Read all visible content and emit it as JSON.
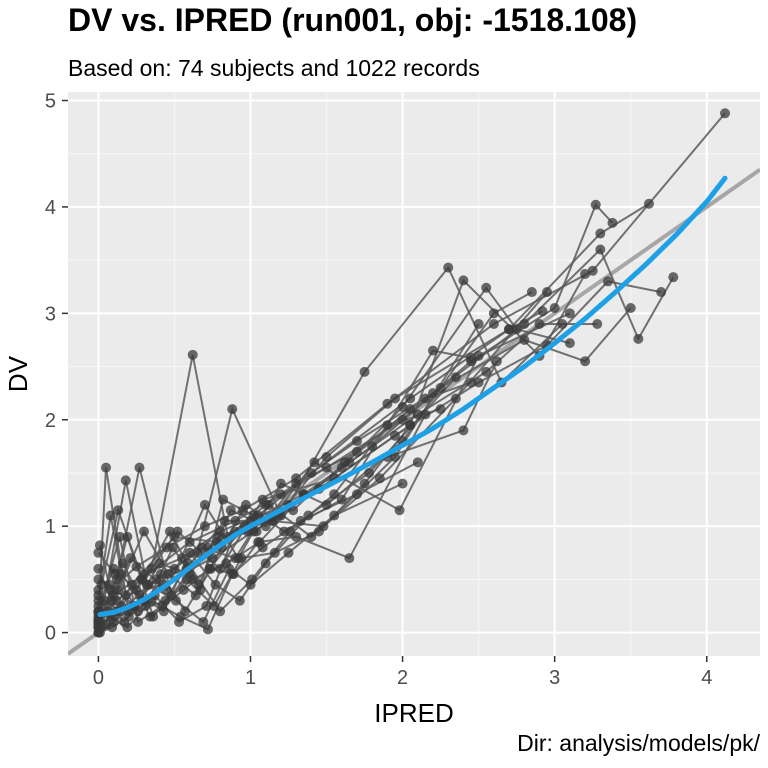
{
  "chart_data": {
    "type": "scatter",
    "title": "DV vs. IPRED (run001, obj: -1518.108)",
    "subtitle": "Based on: 74 subjects and 1022 records",
    "caption": "Dir: analysis/models/pk/",
    "xlabel": "IPRED",
    "ylabel": "DV",
    "xlim": [
      -0.2,
      4.35
    ],
    "ylim": [
      -0.22,
      5.08
    ],
    "xticks": [
      "0",
      "1",
      "2",
      "3",
      "4"
    ],
    "yticks": [
      "0",
      "1",
      "2",
      "3",
      "4",
      "5"
    ],
    "grid": true,
    "panel_background": "#ebebeb",
    "point_color": "#3a3a3a",
    "line_color": "#5a5a5a",
    "identity_line_color": "#a6a6a6",
    "smooth_color": "#1ea0e6",
    "identity_line": [
      [
        -0.2,
        -0.2
      ],
      [
        4.35,
        4.35
      ]
    ],
    "smooth": {
      "x": [
        0.01,
        0.1,
        0.2,
        0.3,
        0.4,
        0.5,
        0.6,
        0.7,
        0.8,
        0.9,
        1.0,
        1.2,
        1.4,
        1.6,
        1.8,
        2.0,
        2.2,
        2.4,
        2.6,
        2.8,
        3.0,
        3.2,
        3.4,
        3.6,
        3.8,
        4.0,
        4.12
      ],
      "y": [
        0.17,
        0.19,
        0.24,
        0.31,
        0.4,
        0.5,
        0.61,
        0.72,
        0.82,
        0.92,
        1.0,
        1.15,
        1.3,
        1.45,
        1.6,
        1.76,
        1.92,
        2.1,
        2.3,
        2.5,
        2.72,
        2.95,
        3.2,
        3.46,
        3.74,
        4.05,
        4.27
      ]
    },
    "subjects": [
      {
        "x": [
          0.0,
          0.08,
          0.25,
          0.45,
          0.7,
          0.95,
          1.3,
          1.9,
          2.6,
          3.25,
          4.12
        ],
        "y": [
          0.05,
          0.4,
          0.62,
          0.8,
          1.0,
          1.15,
          1.45,
          2.15,
          2.9,
          3.4,
          4.88
        ]
      },
      {
        "x": [
          0.0,
          0.1,
          0.3,
          0.55,
          0.8,
          1.05,
          1.4,
          2.05,
          2.7,
          3.3,
          3.62
        ],
        "y": [
          0.1,
          0.35,
          0.55,
          0.7,
          0.95,
          1.1,
          1.5,
          2.2,
          2.85,
          3.75,
          4.03
        ]
      },
      {
        "x": [
          0.0,
          0.12,
          0.28,
          0.6,
          0.9,
          1.2,
          1.7,
          2.2,
          2.8,
          3.3,
          3.55,
          3.78
        ],
        "y": [
          0.08,
          0.3,
          0.5,
          0.85,
          1.05,
          1.3,
          1.8,
          2.25,
          2.9,
          3.6,
          2.76,
          3.34
        ]
      },
      {
        "x": [
          0.0,
          0.15,
          0.35,
          0.62,
          0.85,
          1.1,
          1.5,
          2.0,
          2.45,
          3.0,
          3.27,
          3.38
        ],
        "y": [
          0.12,
          0.25,
          0.6,
          2.61,
          0.9,
          1.2,
          1.55,
          2.0,
          2.55,
          3.05,
          4.02,
          3.85
        ]
      },
      {
        "x": [
          0.0,
          0.1,
          0.22,
          0.5,
          0.78,
          1.0,
          1.35,
          1.8,
          2.25,
          2.8,
          3.2,
          3.5
        ],
        "y": [
          0.2,
          0.15,
          0.45,
          0.9,
          0.85,
          1.05,
          1.3,
          1.75,
          2.3,
          2.75,
          2.55,
          3.05
        ]
      },
      {
        "x": [
          0.0,
          0.05,
          0.18,
          0.42,
          0.75,
          1.02,
          1.45,
          1.95,
          2.5,
          2.95,
          3.35,
          3.7
        ],
        "y": [
          0.15,
          1.55,
          0.35,
          0.45,
          0.7,
          0.95,
          1.35,
          1.85,
          2.35,
          2.7,
          3.3,
          3.2
        ]
      },
      {
        "x": [
          0.0,
          0.08,
          0.2,
          0.38,
          0.65,
          0.88,
          1.2,
          1.65,
          2.1,
          2.55,
          2.9,
          3.28
        ],
        "y": [
          0.3,
          1.1,
          0.2,
          0.5,
          0.75,
          2.1,
          1.1,
          1.6,
          2.05,
          2.45,
          2.9,
          2.9
        ]
      },
      {
        "x": [
          0.02,
          0.12,
          0.27,
          0.48,
          0.72,
          0.98,
          1.25,
          1.75,
          2.3,
          2.65,
          3.05
        ],
        "y": [
          0.05,
          0.5,
          1.55,
          0.35,
          0.8,
          0.95,
          1.2,
          2.45,
          3.43,
          2.35,
          2.9
        ]
      },
      {
        "x": [
          0.0,
          0.1,
          0.25,
          0.52,
          0.8,
          1.08,
          1.55,
          2.05,
          2.4,
          2.9,
          3.2
        ],
        "y": [
          0.25,
          0.6,
          0.4,
          0.95,
          0.6,
          1.25,
          1.45,
          1.95,
          3.31,
          2.6,
          3.37
        ]
      },
      {
        "x": [
          0.0,
          0.18,
          0.32,
          0.58,
          0.83,
          1.15,
          1.6,
          2.0,
          2.55,
          2.75,
          3.1
        ],
        "y": [
          0.0,
          1.43,
          0.45,
          0.6,
          1.05,
          1.05,
          1.55,
          2.12,
          3.24,
          2.85,
          2.72
        ]
      },
      {
        "x": [
          0.0,
          0.09,
          0.21,
          0.45,
          0.7,
          0.92,
          1.2,
          1.5,
          2.0,
          2.6,
          2.85
        ],
        "y": [
          0.6,
          0.3,
          0.7,
          0.4,
          1.2,
          0.7,
          1.4,
          1.2,
          1.8,
          3.0,
          3.2
        ]
      },
      {
        "x": [
          0.0,
          0.14,
          0.3,
          0.5,
          0.68,
          0.9,
          1.12,
          1.4,
          1.85,
          2.35,
          2.95
        ],
        "y": [
          0.35,
          0.2,
          0.3,
          0.6,
          0.8,
          0.7,
          1.2,
          0.9,
          1.45,
          2.2,
          3.2
        ]
      },
      {
        "x": [
          0.0,
          0.11,
          0.26,
          0.44,
          0.62,
          0.84,
          1.06,
          1.35,
          1.9,
          2.4,
          2.62
        ],
        "y": [
          0.75,
          0.55,
          0.2,
          0.3,
          0.5,
          0.65,
          0.85,
          1.3,
          1.65,
          1.9,
          2.55
        ]
      },
      {
        "x": [
          0.02,
          0.13,
          0.29,
          0.47,
          0.66,
          0.87,
          1.1,
          1.42,
          1.98,
          2.5,
          3.1
        ],
        "y": [
          0.45,
          1.15,
          0.5,
          0.95,
          0.45,
          1.15,
          1.0,
          1.6,
          1.15,
          2.6,
          3.0
        ]
      },
      {
        "x": [
          0.0,
          0.16,
          0.34,
          0.56,
          0.73,
          0.96,
          1.18,
          1.5,
          1.95,
          2.7,
          2.92
        ],
        "y": [
          0.1,
          0.65,
          0.15,
          0.4,
          0.6,
          1.0,
          1.1,
          1.65,
          2.2,
          2.85,
          3.02
        ]
      },
      {
        "x": [
          0.01,
          0.07,
          0.24,
          0.4,
          0.6,
          0.79,
          1.04,
          1.3,
          1.7,
          2.15,
          2.45
        ],
        "y": [
          0.82,
          0.45,
          0.25,
          0.65,
          0.55,
          0.9,
          0.95,
          1.4,
          1.7,
          2.2,
          2.35
        ]
      },
      {
        "x": [
          0.0,
          0.13,
          0.3,
          0.46,
          0.64,
          0.81,
          0.97,
          1.22,
          1.6,
          2.2,
          2.45
        ],
        "y": [
          0.5,
          0.4,
          0.95,
          0.55,
          0.35,
          0.8,
          1.2,
          0.95,
          1.25,
          2.65,
          2.58
        ]
      },
      {
        "x": [
          0.0,
          0.06,
          0.19,
          0.36,
          0.58,
          0.76,
          0.94,
          1.16,
          1.45,
          1.75,
          2.05
        ],
        "y": [
          0.4,
          0.2,
          0.9,
          0.15,
          0.5,
          0.25,
          0.7,
          0.75,
          0.95,
          1.4,
          1.95
        ]
      },
      {
        "x": [
          0.0,
          0.1,
          0.23,
          0.41,
          0.57,
          0.74,
          0.89,
          1.05,
          1.3,
          1.65,
          2.15
        ],
        "y": [
          0.0,
          0.1,
          0.25,
          0.55,
          0.2,
          0.6,
          0.55,
          0.85,
          0.9,
          0.7,
          2.05
        ]
      },
      {
        "x": [
          0.0,
          0.04,
          0.17,
          0.33,
          0.51,
          0.69,
          0.86,
          1.0,
          1.25,
          1.55,
          2.0
        ],
        "y": [
          0.2,
          0.3,
          0.1,
          0.45,
          0.3,
          0.1,
          0.6,
          0.45,
          0.75,
          1.1,
          1.4
        ]
      },
      {
        "x": [
          0.0,
          0.12,
          0.27,
          0.43,
          0.6,
          0.77,
          0.93,
          1.1,
          1.38,
          1.78,
          2.35
        ],
        "y": [
          0.05,
          0.2,
          0.35,
          0.2,
          0.75,
          0.45,
          0.3,
          0.65,
          1.1,
          1.5,
          2.4
        ]
      },
      {
        "x": [
          0.01,
          0.09,
          0.2,
          0.37,
          0.53,
          0.71,
          0.9,
          1.14,
          1.48,
          1.95,
          2.5
        ],
        "y": [
          0.0,
          0.05,
          0.15,
          0.35,
          0.1,
          0.25,
          0.95,
          1.05,
          1.0,
          1.65,
          2.9
        ]
      },
      {
        "x": [
          0.0,
          0.05,
          0.15,
          0.31,
          0.49,
          0.67,
          0.82,
          1.02,
          1.28,
          1.62,
          2.05
        ],
        "y": [
          0.12,
          0.08,
          0.55,
          0.25,
          0.8,
          0.4,
          1.25,
          1.1,
          1.15,
          1.6,
          2.1
        ]
      },
      {
        "x": [
          0.0,
          0.14,
          0.26,
          0.42,
          0.59,
          0.8,
          1.01,
          1.26,
          1.55,
          1.9,
          2.25
        ],
        "y": [
          0.18,
          0.9,
          0.1,
          0.25,
          0.65,
          0.2,
          0.5,
          0.95,
          1.3,
          1.95,
          2.1
        ]
      },
      {
        "x": [
          0.0,
          0.08,
          0.19,
          0.35,
          0.54,
          0.72,
          0.88,
          1.08,
          1.33,
          1.7,
          2.1
        ],
        "y": [
          0.05,
          0.15,
          0.05,
          0.3,
          0.15,
          0.03,
          0.55,
          0.8,
          1.05,
          1.3,
          1.6
        ]
      }
    ]
  }
}
